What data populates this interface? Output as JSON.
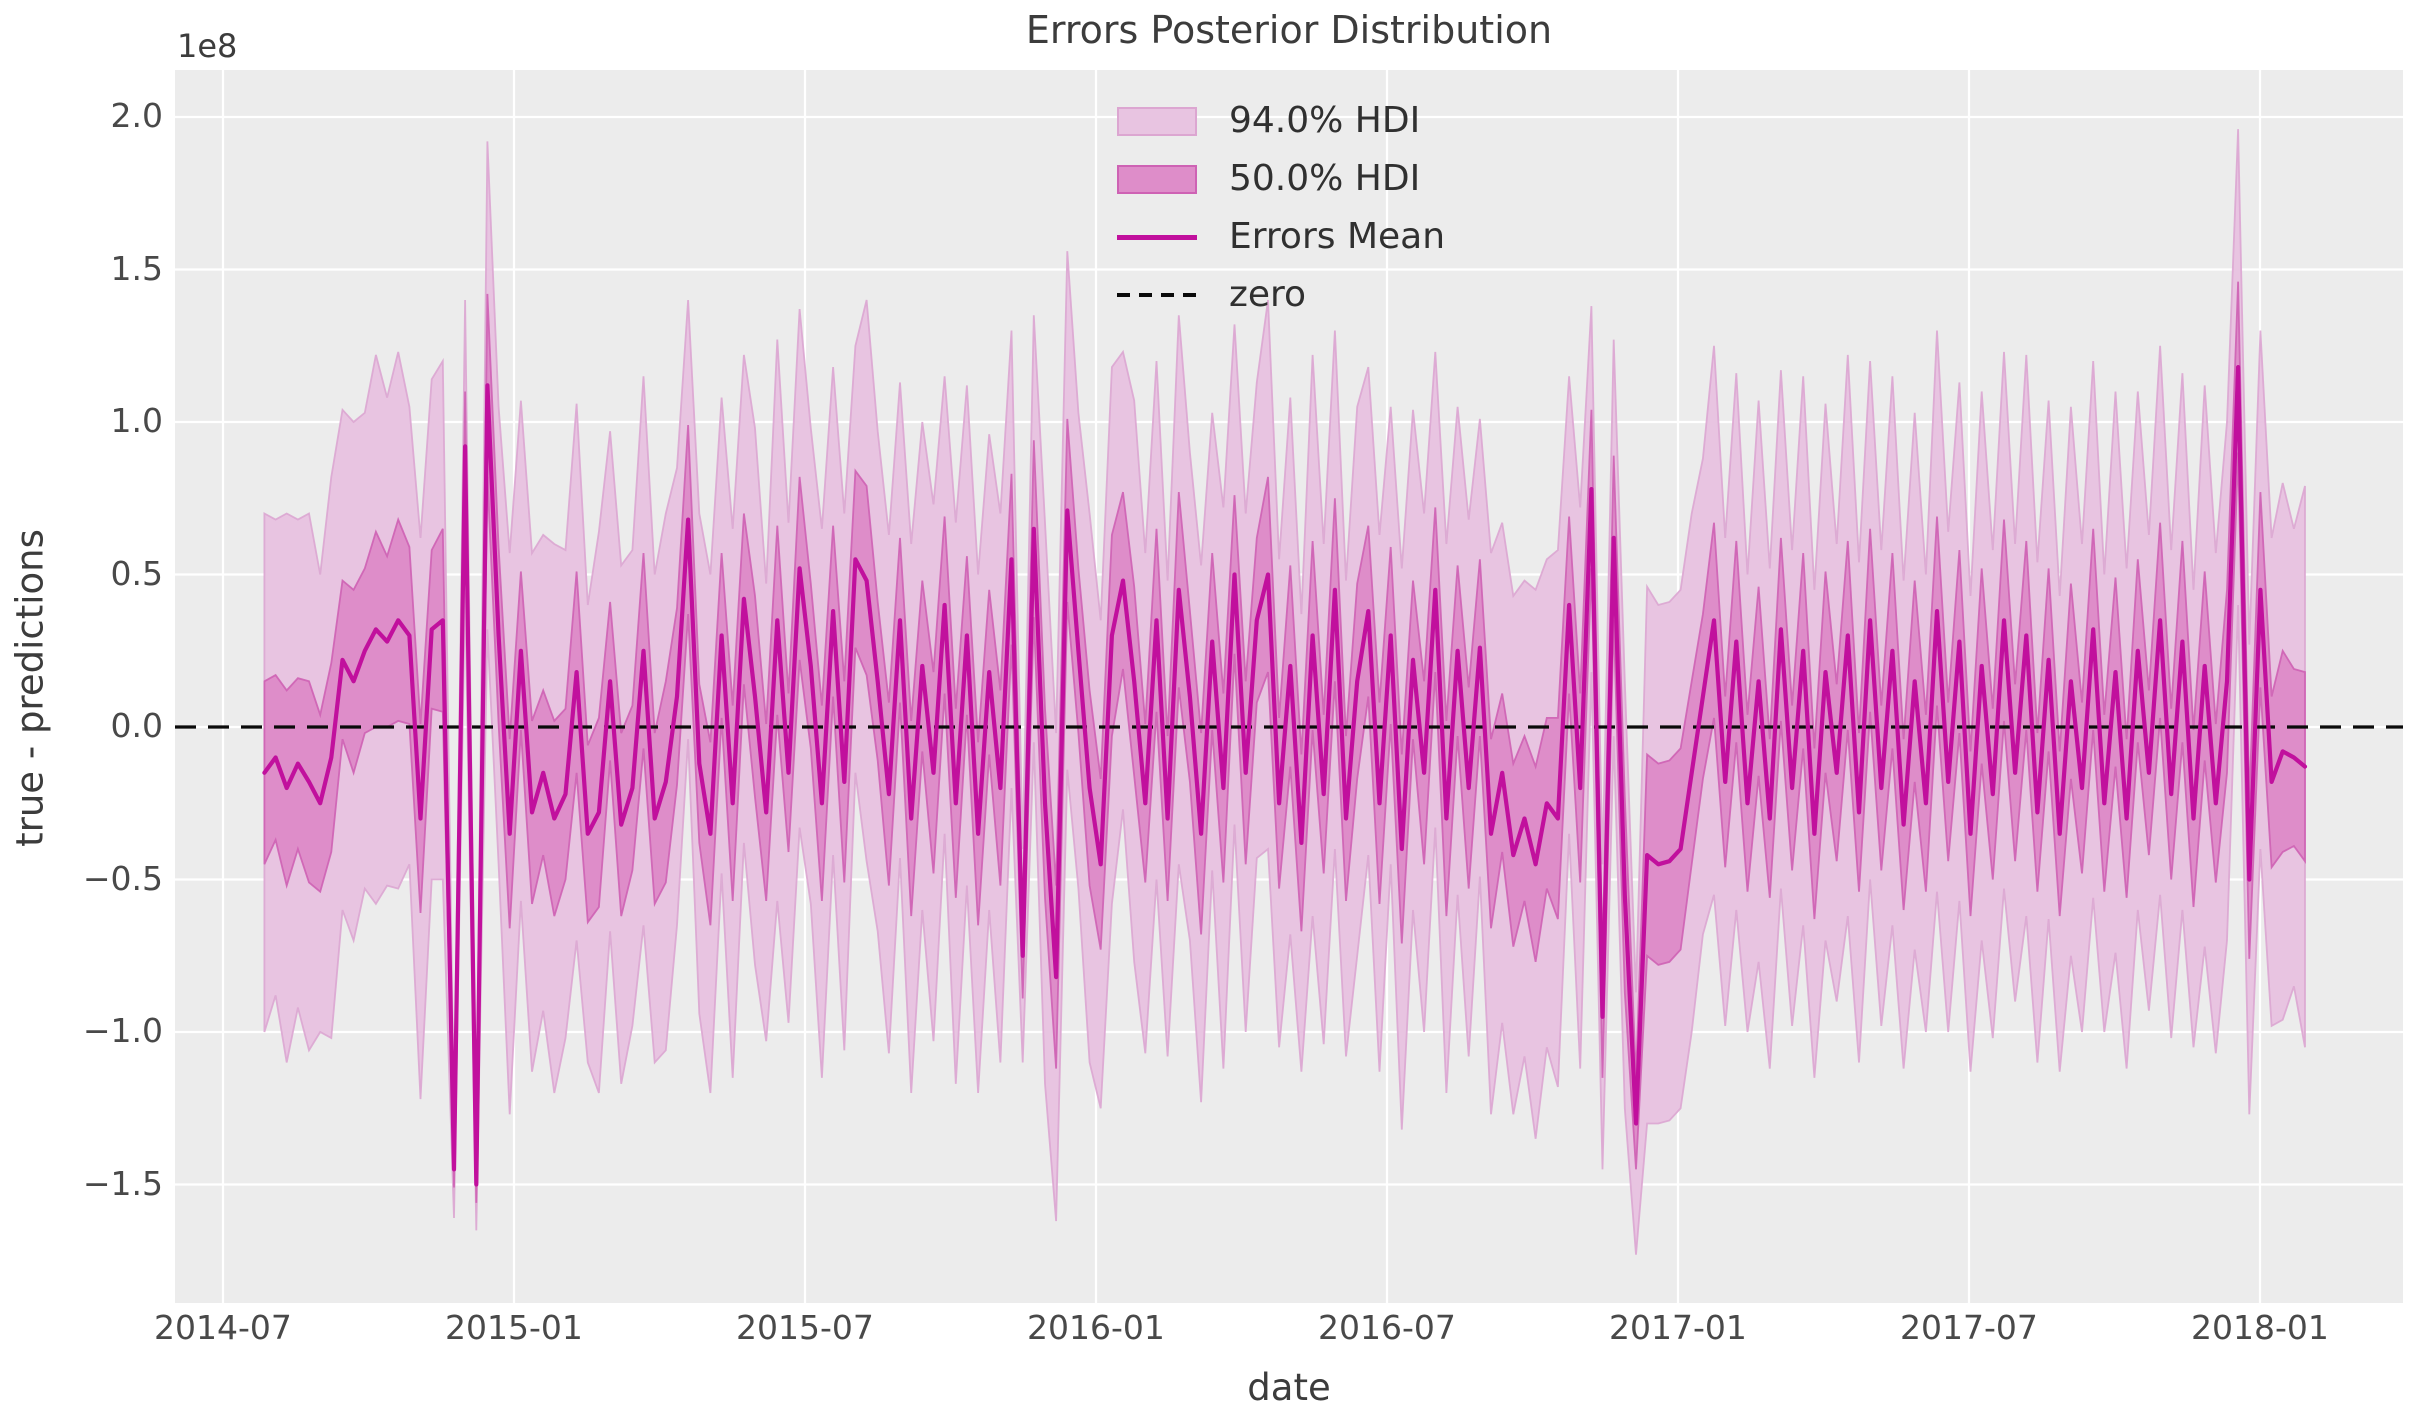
{
  "figure": {
    "title": "Errors Posterior Distribution",
    "xlabel": "date",
    "ylabel": "true - predictions",
    "offset_text": "1e8"
  },
  "legend": {
    "items": [
      {
        "label": "94.0% HDI",
        "swatch": "patch-94"
      },
      {
        "label": "50.0% HDI",
        "swatch": "patch-50"
      },
      {
        "label": "Errors Mean",
        "swatch": "solid-line"
      },
      {
        "label": "zero",
        "swatch": "dashed-line"
      }
    ]
  },
  "chart_data": {
    "type": "line",
    "title": "Errors Posterior Distribution",
    "xlabel": "date",
    "ylabel": "true - predictions",
    "y_offset_label": "1e8",
    "y_unit_multiplier": 100000000,
    "ylim": [
      -1.89,
      2.15
    ],
    "grid": true,
    "legend_position": "upper center inside axes",
    "x_tick_labels": [
      "2014-07",
      "2015-01",
      "2015-07",
      "2016-01",
      "2016-07",
      "2017-01",
      "2017-07",
      "2018-01"
    ],
    "y_tick_values": [
      2.0,
      1.5,
      1.0,
      0.5,
      0.0,
      -0.5,
      -1.0,
      -1.5
    ],
    "y_tick_labels": [
      "2.0",
      "1.5",
      "1.0",
      "0.5",
      "0.0",
      "−0.5",
      "−1.0",
      "−1.5"
    ],
    "colors": {
      "background": "#FFFFFF",
      "axes_background": "#ECECEC",
      "grid": "#FFFFFF",
      "mean_line": "#C1109D",
      "hdi94_fill": "#E8C4E1",
      "hdi94_edge": "#DCA6D1",
      "hdi50_fill": "#DE8DC9",
      "hdi50_edge": "#CE62B4",
      "zero_line": "#0A0A0A",
      "text": "#3C3C3C",
      "tick_text": "#494949"
    },
    "series": {
      "name": "Errors Mean with 50% and 94% HDI (values in 1e8)",
      "start_date": "2014-07-27",
      "freq_days": 7,
      "mean": [
        -0.15,
        -0.1,
        -0.2,
        -0.12,
        -0.18,
        -0.25,
        -0.1,
        0.22,
        0.15,
        0.25,
        0.32,
        0.28,
        0.35,
        0.3,
        -0.3,
        0.32,
        0.35,
        -1.45,
        0.92,
        -1.5,
        1.12,
        0.3,
        -0.35,
        0.25,
        -0.28,
        -0.15,
        -0.3,
        -0.22,
        0.18,
        -0.35,
        -0.28,
        0.15,
        -0.32,
        -0.2,
        0.25,
        -0.3,
        -0.18,
        0.1,
        0.68,
        -0.12,
        -0.35,
        0.3,
        -0.25,
        0.42,
        0.1,
        -0.28,
        0.35,
        -0.15,
        0.52,
        0.2,
        -0.25,
        0.38,
        -0.18,
        0.55,
        0.48,
        0.15,
        -0.22,
        0.35,
        -0.3,
        0.2,
        -0.15,
        0.4,
        -0.25,
        0.3,
        -0.35,
        0.18,
        -0.2,
        0.55,
        -0.75,
        0.65,
        -0.25,
        -0.82,
        0.71,
        0.25,
        -0.2,
        -0.45,
        0.3,
        0.48,
        0.15,
        -0.25,
        0.35,
        -0.3,
        0.45,
        0.1,
        -0.35,
        0.28,
        -0.2,
        0.5,
        -0.15,
        0.35,
        0.5,
        -0.25,
        0.2,
        -0.38,
        0.3,
        -0.22,
        0.45,
        -0.3,
        0.15,
        0.38,
        -0.25,
        0.3,
        -0.4,
        0.22,
        -0.15,
        0.45,
        -0.3,
        0.25,
        -0.2,
        0.26,
        -0.35,
        -0.15,
        -0.42,
        -0.3,
        -0.45,
        -0.25,
        -0.3,
        0.4,
        -0.2,
        0.78,
        -0.95,
        0.62,
        -0.55,
        -1.3,
        -0.42,
        -0.45,
        -0.44,
        -0.4,
        -0.15,
        0.1,
        0.35,
        -0.18,
        0.28,
        -0.25,
        0.15,
        -0.3,
        0.32,
        -0.2,
        0.25,
        -0.35,
        0.18,
        -0.15,
        0.3,
        -0.28,
        0.35,
        -0.2,
        0.25,
        -0.32,
        0.15,
        -0.25,
        0.38,
        -0.18,
        0.28,
        -0.35,
        0.2,
        -0.22,
        0.35,
        -0.15,
        0.3,
        -0.28,
        0.22,
        -0.35,
        0.15,
        -0.2,
        0.32,
        -0.25,
        0.18,
        -0.3,
        0.25,
        -0.15,
        0.35,
        -0.22,
        0.28,
        -0.3,
        0.2,
        -0.25,
        0.15,
        1.18,
        -0.5,
        0.45,
        -0.18,
        -0.08,
        -0.1,
        -0.13
      ],
      "hdi50_half_width": [
        0.3,
        0.27,
        0.32,
        0.28,
        0.33,
        0.29,
        0.31,
        0.26,
        0.3,
        0.27,
        0.32,
        0.28,
        0.33,
        0.29,
        0.31,
        0.26,
        0.3,
        0.06,
        0.18,
        0.06,
        0.3,
        0.29,
        0.31,
        0.26,
        0.3,
        0.27,
        0.32,
        0.28,
        0.33,
        0.29,
        0.31,
        0.26,
        0.3,
        0.27,
        0.32,
        0.28,
        0.33,
        0.29,
        0.31,
        0.26,
        0.3,
        0.27,
        0.32,
        0.28,
        0.33,
        0.29,
        0.31,
        0.26,
        0.3,
        0.27,
        0.32,
        0.28,
        0.33,
        0.29,
        0.31,
        0.26,
        0.3,
        0.27,
        0.32,
        0.28,
        0.33,
        0.29,
        0.31,
        0.26,
        0.3,
        0.27,
        0.32,
        0.28,
        0.14,
        0.29,
        0.31,
        0.3,
        0.3,
        0.27,
        0.32,
        0.28,
        0.33,
        0.29,
        0.31,
        0.26,
        0.3,
        0.27,
        0.32,
        0.28,
        0.33,
        0.29,
        0.31,
        0.26,
        0.3,
        0.27,
        0.32,
        0.28,
        0.33,
        0.29,
        0.31,
        0.26,
        0.3,
        0.27,
        0.32,
        0.28,
        0.33,
        0.29,
        0.31,
        0.26,
        0.3,
        0.27,
        0.32,
        0.28,
        0.33,
        0.29,
        0.31,
        0.26,
        0.3,
        0.27,
        0.32,
        0.28,
        0.33,
        0.29,
        0.31,
        0.26,
        0.2,
        0.27,
        0.32,
        0.15,
        0.33,
        0.33,
        0.33,
        0.33,
        0.3,
        0.27,
        0.32,
        0.28,
        0.33,
        0.29,
        0.31,
        0.26,
        0.3,
        0.27,
        0.32,
        0.28,
        0.33,
        0.29,
        0.31,
        0.26,
        0.3,
        0.27,
        0.32,
        0.28,
        0.33,
        0.29,
        0.31,
        0.26,
        0.3,
        0.27,
        0.32,
        0.28,
        0.33,
        0.29,
        0.31,
        0.26,
        0.3,
        0.27,
        0.32,
        0.28,
        0.33,
        0.29,
        0.31,
        0.26,
        0.3,
        0.27,
        0.32,
        0.28,
        0.33,
        0.29,
        0.31,
        0.26,
        0.3,
        0.28,
        0.26,
        0.32,
        0.28,
        0.33,
        0.29,
        0.31
      ],
      "hdi94_half_width": [
        0.85,
        0.78,
        0.9,
        0.8,
        0.88,
        0.75,
        0.92,
        0.82,
        0.85,
        0.78,
        0.9,
        0.8,
        0.88,
        0.75,
        0.92,
        0.82,
        0.85,
        0.16,
        0.48,
        0.15,
        0.8,
        0.75,
        0.92,
        0.82,
        0.85,
        0.78,
        0.9,
        0.8,
        0.88,
        0.75,
        0.92,
        0.82,
        0.85,
        0.78,
        0.9,
        0.8,
        0.88,
        0.75,
        0.72,
        0.82,
        0.85,
        0.78,
        0.9,
        0.8,
        0.88,
        0.75,
        0.92,
        0.82,
        0.85,
        0.78,
        0.9,
        0.8,
        0.88,
        0.7,
        0.92,
        0.82,
        0.85,
        0.78,
        0.9,
        0.8,
        0.88,
        0.75,
        0.92,
        0.82,
        0.85,
        0.78,
        0.9,
        0.75,
        0.35,
        0.7,
        0.92,
        0.8,
        0.85,
        0.78,
        0.9,
        0.8,
        0.88,
        0.75,
        0.92,
        0.82,
        0.85,
        0.78,
        0.9,
        0.8,
        0.88,
        0.75,
        0.92,
        0.82,
        0.85,
        0.78,
        0.9,
        0.8,
        0.88,
        0.75,
        0.92,
        0.82,
        0.85,
        0.78,
        0.9,
        0.8,
        0.88,
        0.75,
        0.92,
        0.82,
        0.85,
        0.78,
        0.9,
        0.8,
        0.88,
        0.75,
        0.92,
        0.82,
        0.85,
        0.78,
        0.9,
        0.8,
        0.88,
        0.75,
        0.92,
        0.6,
        0.5,
        0.65,
        0.7,
        0.43,
        0.88,
        0.85,
        0.85,
        0.85,
        0.85,
        0.78,
        0.9,
        0.8,
        0.88,
        0.75,
        0.92,
        0.82,
        0.85,
        0.78,
        0.9,
        0.8,
        0.88,
        0.75,
        0.92,
        0.82,
        0.85,
        0.78,
        0.9,
        0.8,
        0.88,
        0.75,
        0.92,
        0.82,
        0.85,
        0.78,
        0.9,
        0.8,
        0.88,
        0.75,
        0.92,
        0.82,
        0.85,
        0.78,
        0.9,
        0.8,
        0.88,
        0.75,
        0.92,
        0.82,
        0.85,
        0.78,
        0.9,
        0.8,
        0.88,
        0.75,
        0.92,
        0.82,
        0.85,
        0.78,
        0.77,
        0.85,
        0.8,
        0.88,
        0.75,
        0.92
      ]
    }
  }
}
